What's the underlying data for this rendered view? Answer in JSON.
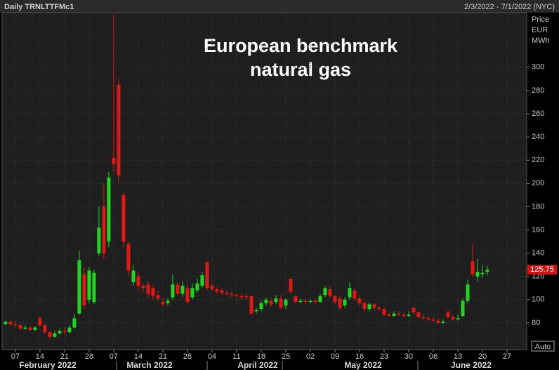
{
  "header": {
    "left": "Daily TRNLTTFMc1",
    "right": "2/3/2022 - 7/1/2022 (NYC)"
  },
  "chart_data": {
    "type": "candlestick",
    "title": [
      "European benchmark",
      "natural gas"
    ],
    "y_axis_label": [
      "Price",
      "EUR",
      "MWh"
    ],
    "scale_mode": "Auto",
    "up_color": "#22d422",
    "down_color": "#e01818",
    "open": [
      79,
      81,
      79,
      78,
      75,
      76,
      74,
      84,
      78,
      72,
      68,
      71,
      73,
      72,
      76,
      88,
      122,
      100,
      98,
      140,
      180,
      150,
      222,
      285,
      190,
      148,
      115,
      120,
      112,
      113,
      110,
      104,
      98,
      97,
      102,
      113,
      105,
      110,
      102,
      108,
      112,
      132,
      112,
      109,
      108,
      106,
      105,
      104,
      103,
      103,
      103,
      90,
      92,
      97,
      99,
      98,
      101,
      95,
      118,
      103,
      98,
      99,
      98,
      99,
      98,
      104,
      109,
      103,
      101,
      95,
      102,
      108,
      101,
      97,
      92,
      96,
      93,
      92,
      87,
      86,
      88,
      87,
      86,
      93,
      89,
      85,
      84,
      83,
      82,
      80,
      89,
      85,
      83,
      86,
      99,
      133,
      120,
      122,
      124
    ],
    "high": [
      82,
      83,
      82,
      79,
      78,
      77,
      77,
      86,
      79,
      73,
      73,
      75,
      76,
      78,
      88,
      142,
      128,
      128,
      126,
      180,
      200,
      210,
      345,
      290,
      193,
      150,
      130,
      124,
      114,
      116,
      113,
      108,
      102,
      101,
      122,
      115,
      116,
      113,
      114,
      118,
      124,
      133,
      114,
      111,
      110,
      108,
      107,
      106,
      105,
      105,
      104,
      93,
      99,
      102,
      102,
      104,
      104,
      101,
      119,
      104,
      101,
      101,
      100,
      101,
      105,
      112,
      112,
      104,
      104,
      102,
      115,
      110,
      103,
      99,
      98,
      97,
      95,
      93,
      89,
      90,
      90,
      89,
      90,
      94,
      90,
      87,
      86,
      85,
      84,
      83,
      91,
      87,
      87,
      101,
      117,
      148,
      135,
      130,
      129
    ],
    "low": [
      78,
      77,
      76,
      74,
      74,
      73,
      73,
      77,
      70,
      66,
      67,
      70,
      70,
      71,
      75,
      87,
      92,
      97,
      96,
      138,
      135,
      145,
      210,
      200,
      145,
      120,
      112,
      108,
      106,
      102,
      100,
      99,
      94,
      95,
      100,
      103,
      102,
      96,
      100,
      106,
      110,
      108,
      107,
      105,
      104,
      103,
      102,
      101,
      100,
      100,
      87,
      88,
      90,
      95,
      94,
      96,
      92,
      92,
      105,
      97,
      97,
      96,
      97,
      96,
      97,
      102,
      101,
      96,
      91,
      93,
      100,
      99,
      95,
      90,
      90,
      91,
      90,
      86,
      85,
      85,
      86,
      85,
      85,
      88,
      84,
      83,
      82,
      81,
      79,
      79,
      84,
      82,
      82,
      85,
      97,
      120,
      116,
      119,
      121
    ],
    "close": [
      81,
      79,
      78,
      75,
      76,
      74,
      76,
      78,
      72,
      68,
      71,
      73,
      72,
      76,
      84,
      134,
      95,
      125,
      123,
      162,
      140,
      205,
      217,
      207,
      150,
      125,
      125,
      112,
      110,
      105,
      103,
      101,
      96,
      99,
      113,
      105,
      112,
      98,
      110,
      114,
      121,
      110,
      109,
      107,
      106,
      105,
      104,
      103,
      102,
      102,
      88,
      91,
      97,
      100,
      96,
      101,
      93,
      100,
      107,
      98,
      99,
      98,
      99,
      98,
      103,
      110,
      103,
      98,
      93,
      100,
      110,
      101,
      97,
      92,
      96,
      93,
      92,
      87,
      86,
      88,
      87,
      86,
      87,
      89,
      85,
      84,
      83,
      82,
      80,
      81,
      85,
      83,
      84,
      99,
      113,
      122,
      124,
      123,
      125.75
    ],
    "xlim": [
      -0.7,
      106
    ],
    "xticks": [
      {
        "value": 2,
        "label": "07"
      },
      {
        "value": 7,
        "label": "14"
      },
      {
        "value": 12,
        "label": "21"
      },
      {
        "value": 17,
        "label": "28"
      },
      {
        "value": 22,
        "label": "07"
      },
      {
        "value": 27,
        "label": "14"
      },
      {
        "value": 32,
        "label": "21"
      },
      {
        "value": 37,
        "label": "28"
      },
      {
        "value": 42,
        "label": "04"
      },
      {
        "value": 47,
        "label": "11"
      },
      {
        "value": 52,
        "label": "18"
      },
      {
        "value": 57,
        "label": "25"
      },
      {
        "value": 62,
        "label": "02"
      },
      {
        "value": 67,
        "label": "09"
      },
      {
        "value": 72,
        "label": "16"
      },
      {
        "value": 77,
        "label": "23"
      },
      {
        "value": 82,
        "label": "30"
      },
      {
        "value": 87,
        "label": "06"
      },
      {
        "value": 92,
        "label": "13"
      },
      {
        "value": 97,
        "label": "20"
      },
      {
        "value": 102,
        "label": "27"
      }
    ],
    "months": [
      "February 2022",
      "March 2022",
      "April 2022",
      "May 2022",
      "June 2022"
    ],
    "ylim": [
      57,
      347
    ],
    "yticks": [
      80,
      100,
      120,
      140,
      160,
      180,
      200,
      220,
      240,
      260,
      280,
      300
    ],
    "grid": true
  }
}
